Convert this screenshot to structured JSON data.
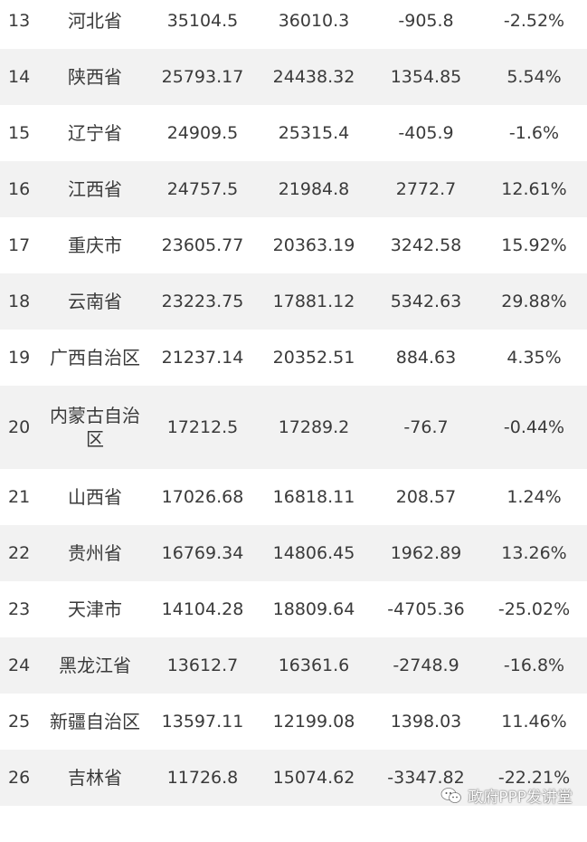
{
  "rows": [
    {
      "rank": "13",
      "province": "河北省",
      "value_a": "35104.5",
      "value_b": "36010.3",
      "diff": "-905.8",
      "pct": "-2.52%"
    },
    {
      "rank": "14",
      "province": "陕西省",
      "value_a": "25793.17",
      "value_b": "24438.32",
      "diff": "1354.85",
      "pct": "5.54%"
    },
    {
      "rank": "15",
      "province": "辽宁省",
      "value_a": "24909.5",
      "value_b": "25315.4",
      "diff": "-405.9",
      "pct": "-1.6%"
    },
    {
      "rank": "16",
      "province": "江西省",
      "value_a": "24757.5",
      "value_b": "21984.8",
      "diff": "2772.7",
      "pct": "12.61%"
    },
    {
      "rank": "17",
      "province": "重庆市",
      "value_a": "23605.77",
      "value_b": "20363.19",
      "diff": "3242.58",
      "pct": "15.92%"
    },
    {
      "rank": "18",
      "province": "云南省",
      "value_a": "23223.75",
      "value_b": "17881.12",
      "diff": "5342.63",
      "pct": "29.88%"
    },
    {
      "rank": "19",
      "province": "广西自治区",
      "value_a": "21237.14",
      "value_b": "20352.51",
      "diff": "884.63",
      "pct": "4.35%"
    },
    {
      "rank": "20",
      "province": "内蒙古自治区",
      "value_a": "17212.5",
      "value_b": "17289.2",
      "diff": "-76.7",
      "pct": "-0.44%"
    },
    {
      "rank": "21",
      "province": "山西省",
      "value_a": "17026.68",
      "value_b": "16818.11",
      "diff": "208.57",
      "pct": "1.24%"
    },
    {
      "rank": "22",
      "province": "贵州省",
      "value_a": "16769.34",
      "value_b": "14806.45",
      "diff": "1962.89",
      "pct": "13.26%"
    },
    {
      "rank": "23",
      "province": "天津市",
      "value_a": "14104.28",
      "value_b": "18809.64",
      "diff": "-4705.36",
      "pct": "-25.02%"
    },
    {
      "rank": "24",
      "province": "黑龙江省",
      "value_a": "13612.7",
      "value_b": "16361.6",
      "diff": "-2748.9",
      "pct": "-16.8%"
    },
    {
      "rank": "25",
      "province": "新疆自治区",
      "value_a": "13597.11",
      "value_b": "12199.08",
      "diff": "1398.03",
      "pct": "11.46%"
    },
    {
      "rank": "26",
      "province": "吉林省",
      "value_a": "11726.8",
      "value_b": "15074.62",
      "diff": "-3347.82",
      "pct": "-22.21%"
    }
  ],
  "watermark": {
    "icon": "wechat-icon",
    "text": "政府PPP发讲堂"
  },
  "colors": {
    "stripe": "#f2f2f2",
    "text": "#3a3a3a",
    "background": "#ffffff"
  }
}
